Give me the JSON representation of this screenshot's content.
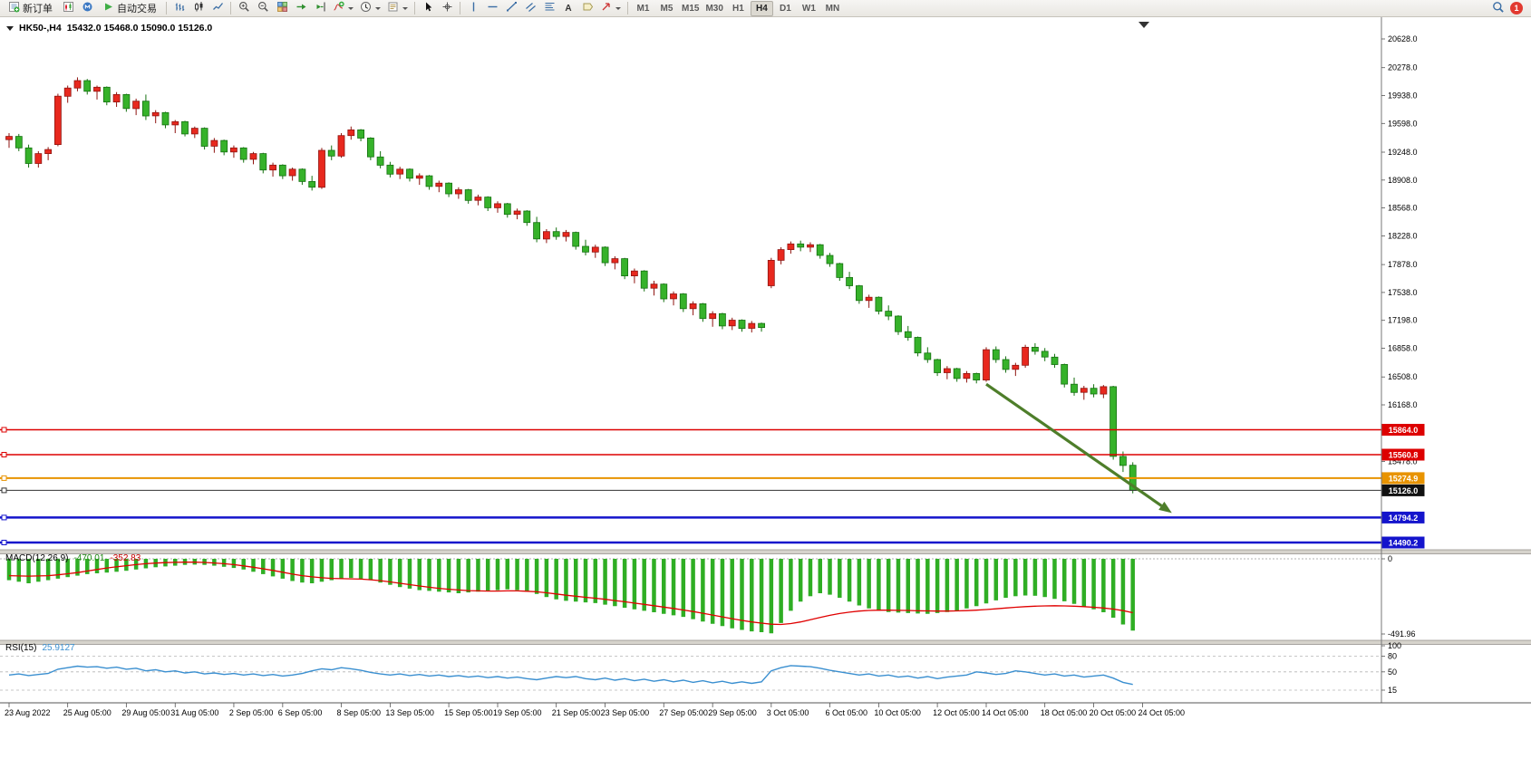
{
  "toolbar": {
    "new_order": "新订单",
    "auto_trading": "自动交易",
    "timeframes": [
      "M1",
      "M5",
      "M15",
      "M30",
      "H1",
      "H4",
      "D1",
      "W1",
      "MN"
    ],
    "active_timeframe": "H4",
    "notification_count": "1"
  },
  "icons": {
    "text_tool": "A"
  },
  "chart_header": {
    "symbol_period": "HK50-,H4",
    "ohlc": "15432.0 15468.0 15090.0 15126.0"
  },
  "indicators": {
    "macd": {
      "label": "MACD(12,26,9)",
      "value_main": "-470.01",
      "value_signal": "-352.83"
    },
    "rsi": {
      "label": "RSI(15)",
      "value": "25.9127"
    }
  },
  "chart_data": {
    "type": "candlestick",
    "symbol": "HK50-",
    "period": "H4",
    "colors": {
      "up": "#e8281e",
      "up_stroke": "#8f1410",
      "down": "#36b22a",
      "down_stroke": "#157010",
      "background": "#ffffff"
    },
    "price_axis": {
      "min": 14490,
      "max": 20628,
      "ticks": [
        20628.0,
        20278.0,
        19938.0,
        19598.0,
        19248.0,
        18908.0,
        18568.0,
        18228.0,
        17878.0,
        17538.0,
        17198.0,
        16858.0,
        16508.0,
        16168.0,
        15478.0
      ]
    },
    "time_axis": {
      "labels": [
        "23 Aug 2022",
        "25 Aug 05:00",
        "29 Aug 05:00",
        "31 Aug 05:00",
        "2 Sep 05:00",
        "6 Sep 05:00",
        "8 Sep 05:00",
        "13 Sep 05:00",
        "15 Sep 05:00",
        "19 Sep 05:00",
        "21 Sep 05:00",
        "23 Sep 05:00",
        "27 Sep 05:00",
        "29 Sep 05:00",
        "3 Oct 05:00",
        "6 Oct 05:00",
        "10 Oct 05:00",
        "12 Oct 05:00",
        "14 Oct 05:00",
        "18 Oct 05:00",
        "20 Oct 05:00",
        "24 Oct 05:00"
      ],
      "indices": [
        0,
        6,
        12,
        17,
        23,
        28,
        34,
        39,
        45,
        50,
        56,
        61,
        67,
        72,
        78,
        84,
        89,
        95,
        100,
        106,
        111,
        116
      ]
    },
    "candles": [
      [
        19400,
        19480,
        19300,
        19440
      ],
      [
        19440,
        19470,
        19260,
        19300
      ],
      [
        19300,
        19340,
        19060,
        19110
      ],
      [
        19110,
        19260,
        19060,
        19230
      ],
      [
        19230,
        19310,
        19150,
        19280
      ],
      [
        19340,
        19960,
        19320,
        19930
      ],
      [
        19930,
        20060,
        19850,
        20030
      ],
      [
        20030,
        20160,
        19990,
        20120
      ],
      [
        20120,
        20140,
        19950,
        19990
      ],
      [
        19990,
        20060,
        19890,
        20040
      ],
      [
        20040,
        20050,
        19820,
        19860
      ],
      [
        19860,
        19980,
        19800,
        19950
      ],
      [
        19950,
        19960,
        19740,
        19780
      ],
      [
        19780,
        19900,
        19700,
        19870
      ],
      [
        19870,
        19950,
        19640,
        19690
      ],
      [
        19690,
        19760,
        19600,
        19730
      ],
      [
        19730,
        19740,
        19540,
        19580
      ],
      [
        19580,
        19640,
        19480,
        19620
      ],
      [
        19620,
        19630,
        19440,
        19470
      ],
      [
        19470,
        19560,
        19420,
        19540
      ],
      [
        19540,
        19550,
        19280,
        19320
      ],
      [
        19320,
        19420,
        19240,
        19390
      ],
      [
        19390,
        19400,
        19210,
        19250
      ],
      [
        19250,
        19330,
        19180,
        19300
      ],
      [
        19300,
        19310,
        19120,
        19160
      ],
      [
        19160,
        19250,
        19100,
        19230
      ],
      [
        19230,
        19240,
        18990,
        19030
      ],
      [
        19030,
        19120,
        18950,
        19090
      ],
      [
        19090,
        19100,
        18920,
        18960
      ],
      [
        18960,
        19060,
        18900,
        19040
      ],
      [
        19040,
        19050,
        18850,
        18890
      ],
      [
        18890,
        18960,
        18780,
        18820
      ],
      [
        18820,
        19300,
        18800,
        19270
      ],
      [
        19270,
        19330,
        19150,
        19200
      ],
      [
        19200,
        19480,
        19180,
        19450
      ],
      [
        19450,
        19560,
        19400,
        19520
      ],
      [
        19520,
        19530,
        19380,
        19420
      ],
      [
        19420,
        19430,
        19150,
        19190
      ],
      [
        19190,
        19260,
        19050,
        19090
      ],
      [
        19090,
        19130,
        18940,
        18980
      ],
      [
        18980,
        19070,
        18920,
        19040
      ],
      [
        19040,
        19050,
        18890,
        18930
      ],
      [
        18930,
        18990,
        18850,
        18960
      ],
      [
        18960,
        18970,
        18790,
        18830
      ],
      [
        18830,
        18900,
        18760,
        18870
      ],
      [
        18870,
        18880,
        18700,
        18740
      ],
      [
        18740,
        18820,
        18680,
        18790
      ],
      [
        18790,
        18800,
        18620,
        18660
      ],
      [
        18660,
        18730,
        18600,
        18700
      ],
      [
        18700,
        18710,
        18530,
        18570
      ],
      [
        18570,
        18650,
        18510,
        18620
      ],
      [
        18620,
        18630,
        18450,
        18490
      ],
      [
        18490,
        18560,
        18430,
        18530
      ],
      [
        18530,
        18540,
        18350,
        18390
      ],
      [
        18390,
        18460,
        18150,
        18190
      ],
      [
        18190,
        18310,
        18140,
        18280
      ],
      [
        18280,
        18330,
        18180,
        18220
      ],
      [
        18220,
        18300,
        18160,
        18270
      ],
      [
        18270,
        18280,
        18060,
        18100
      ],
      [
        18100,
        18180,
        17990,
        18030
      ],
      [
        18030,
        18120,
        17960,
        18090
      ],
      [
        18090,
        18100,
        17860,
        17900
      ],
      [
        17900,
        17980,
        17820,
        17950
      ],
      [
        17950,
        17960,
        17700,
        17740
      ],
      [
        17740,
        17830,
        17650,
        17800
      ],
      [
        17800,
        17810,
        17550,
        17590
      ],
      [
        17590,
        17680,
        17500,
        17640
      ],
      [
        17640,
        17650,
        17420,
        17460
      ],
      [
        17460,
        17550,
        17380,
        17520
      ],
      [
        17520,
        17530,
        17300,
        17340
      ],
      [
        17340,
        17430,
        17260,
        17400
      ],
      [
        17400,
        17410,
        17180,
        17220
      ],
      [
        17220,
        17310,
        17120,
        17280
      ],
      [
        17280,
        17290,
        17090,
        17130
      ],
      [
        17130,
        17230,
        17080,
        17200
      ],
      [
        17200,
        17210,
        17060,
        17100
      ],
      [
        17100,
        17190,
        17050,
        17160
      ],
      [
        17160,
        17170,
        17060,
        17110
      ],
      [
        17620,
        17960,
        17590,
        17930
      ],
      [
        17930,
        18090,
        17880,
        18060
      ],
      [
        18060,
        18160,
        18010,
        18130
      ],
      [
        18130,
        18170,
        18040,
        18090
      ],
      [
        18090,
        18150,
        18030,
        18120
      ],
      [
        18120,
        18130,
        17950,
        17990
      ],
      [
        17990,
        18020,
        17850,
        17890
      ],
      [
        17890,
        17900,
        17680,
        17720
      ],
      [
        17720,
        17790,
        17580,
        17620
      ],
      [
        17620,
        17630,
        17400,
        17440
      ],
      [
        17440,
        17510,
        17350,
        17480
      ],
      [
        17480,
        17490,
        17270,
        17310
      ],
      [
        17310,
        17380,
        17200,
        17250
      ],
      [
        17250,
        17260,
        17020,
        17060
      ],
      [
        17060,
        17130,
        16950,
        16990
      ],
      [
        16990,
        17000,
        16760,
        16800
      ],
      [
        16800,
        16870,
        16680,
        16720
      ],
      [
        16720,
        16730,
        16520,
        16560
      ],
      [
        16560,
        16640,
        16480,
        16610
      ],
      [
        16610,
        16620,
        16450,
        16490
      ],
      [
        16490,
        16580,
        16440,
        16550
      ],
      [
        16550,
        16560,
        16430,
        16470
      ],
      [
        16470,
        16870,
        16450,
        16840
      ],
      [
        16840,
        16880,
        16680,
        16720
      ],
      [
        16720,
        16760,
        16560,
        16600
      ],
      [
        16600,
        16680,
        16520,
        16650
      ],
      [
        16650,
        16900,
        16620,
        16870
      ],
      [
        16870,
        16920,
        16780,
        16820
      ],
      [
        16820,
        16860,
        16700,
        16750
      ],
      [
        16750,
        16790,
        16620,
        16660
      ],
      [
        16660,
        16670,
        16380,
        16420
      ],
      [
        16420,
        16500,
        16280,
        16320
      ],
      [
        16320,
        16400,
        16230,
        16370
      ],
      [
        16370,
        16420,
        16260,
        16300
      ],
      [
        16300,
        16410,
        16250,
        16390
      ],
      [
        16390,
        16400,
        15500,
        15540
      ],
      [
        15540,
        15600,
        15350,
        15430
      ],
      [
        15432,
        15468,
        15090,
        15126
      ]
    ],
    "hlines": [
      {
        "price": 15864.0,
        "color": "#dd0000",
        "width": 1.4,
        "label": "15864.0",
        "badge": "#dd0000"
      },
      {
        "price": 15560.8,
        "color": "#dd0000",
        "width": 1.4,
        "label": "15560.8",
        "badge": "#dd0000"
      },
      {
        "price": 15274.9,
        "color": "#e89300",
        "width": 2,
        "label": "15274.9",
        "badge": "#e89300"
      },
      {
        "price": 15126.0,
        "color": "#333333",
        "width": 1,
        "label": "15126.0",
        "badge": "#111111"
      },
      {
        "price": 14794.2,
        "color": "#1414cc",
        "width": 2.5,
        "label": "14794.2",
        "badge": "#1414cc"
      },
      {
        "price": 14490.2,
        "color": "#1414cc",
        "width": 2.5,
        "label": "14490.2",
        "badge": "#1414cc"
      }
    ],
    "trend_arrow": {
      "from_index": 100,
      "from_price": 16420,
      "to_index": 119,
      "to_price": 14850,
      "color": "#4e7e2a"
    },
    "macd": {
      "hist_color": "#2fae24",
      "signal_color": "#e00000",
      "axis_labels": [
        {
          "v": 0,
          "t": "0"
        },
        {
          "v": -491.96,
          "t": "-491.96"
        }
      ],
      "histogram": [
        -140,
        -150,
        -160,
        -150,
        -140,
        -130,
        -120,
        -110,
        -100,
        -95,
        -90,
        -85,
        -78,
        -70,
        -62,
        -55,
        -50,
        -45,
        -40,
        -38,
        -40,
        -45,
        -52,
        -60,
        -70,
        -85,
        -100,
        -115,
        -130,
        -145,
        -155,
        -160,
        -150,
        -140,
        -130,
        -125,
        -130,
        -140,
        -155,
        -170,
        -185,
        -195,
        -205,
        -210,
        -215,
        -220,
        -225,
        -220,
        -215,
        -210,
        -205,
        -200,
        -205,
        -215,
        -230,
        -250,
        -265,
        -275,
        -280,
        -285,
        -290,
        -300,
        -310,
        -320,
        -330,
        -340,
        -350,
        -360,
        -370,
        -380,
        -395,
        -410,
        -425,
        -440,
        -455,
        -465,
        -475,
        -480,
        -487,
        -420,
        -340,
        -280,
        -245,
        -225,
        -235,
        -255,
        -280,
        -305,
        -325,
        -340,
        -348,
        -352,
        -355,
        -358,
        -360,
        -355,
        -348,
        -338,
        -325,
        -310,
        -292,
        -272,
        -255,
        -245,
        -240,
        -242,
        -250,
        -262,
        -278,
        -295,
        -312,
        -330,
        -350,
        -385,
        -430,
        -470.01
      ],
      "signal": [
        -110,
        -112,
        -113,
        -112,
        -110,
        -105,
        -98,
        -90,
        -80,
        -70,
        -60,
        -52,
        -45,
        -38,
        -32,
        -28,
        -25,
        -23,
        -22,
        -22,
        -24,
        -27,
        -32,
        -38,
        -46,
        -55,
        -65,
        -76,
        -88,
        -100,
        -110,
        -118,
        -124,
        -128,
        -130,
        -131,
        -133,
        -137,
        -143,
        -151,
        -160,
        -169,
        -178,
        -186,
        -193,
        -199,
        -204,
        -208,
        -210,
        -211,
        -211,
        -210,
        -210,
        -212,
        -216,
        -222,
        -230,
        -238,
        -245,
        -252,
        -258,
        -265,
        -273,
        -281,
        -290,
        -298,
        -307,
        -316,
        -325,
        -335,
        -345,
        -356,
        -368,
        -380,
        -392,
        -403,
        -413,
        -421,
        -428,
        -430,
        -424,
        -413,
        -399,
        -384,
        -370,
        -358,
        -349,
        -342,
        -338,
        -336,
        -336,
        -337,
        -338,
        -340,
        -341,
        -342,
        -342,
        -341,
        -339,
        -336,
        -332,
        -327,
        -322,
        -317,
        -313,
        -310,
        -308,
        -307,
        -308,
        -310,
        -313,
        -317,
        -322,
        -329,
        -339,
        -352.83
      ]
    },
    "rsi": {
      "color": "#3a8fd0",
      "levels": [
        80,
        50,
        15
      ],
      "axis_labels": [
        {
          "v": 100,
          "t": "100"
        },
        {
          "v": 80,
          "t": "80"
        },
        {
          "v": 50,
          "t": "50"
        },
        {
          "v": 15,
          "t": "15"
        }
      ],
      "values": [
        44,
        46,
        43,
        45,
        47,
        55,
        58,
        61,
        59,
        60,
        57,
        59,
        55,
        57,
        52,
        54,
        50,
        52,
        48,
        50,
        46,
        48,
        45,
        47,
        44,
        46,
        43,
        45,
        42,
        44,
        47,
        52,
        56,
        54,
        58,
        56,
        53,
        49,
        46,
        44,
        46,
        43,
        45,
        42,
        44,
        41,
        43,
        40,
        42,
        39,
        41,
        38,
        40,
        37,
        35,
        38,
        41,
        39,
        41,
        37,
        35,
        38,
        34,
        37,
        33,
        36,
        32,
        35,
        31,
        34,
        30,
        33,
        29,
        32,
        28,
        31,
        28,
        31,
        52,
        58,
        62,
        61,
        60,
        57,
        53,
        50,
        47,
        44,
        46,
        42,
        44,
        40,
        42,
        38,
        41,
        37,
        40,
        42,
        44,
        50,
        48,
        45,
        47,
        52,
        50,
        47,
        44,
        46,
        42,
        44,
        40,
        42,
        44,
        38,
        30,
        25.9127
      ]
    }
  }
}
